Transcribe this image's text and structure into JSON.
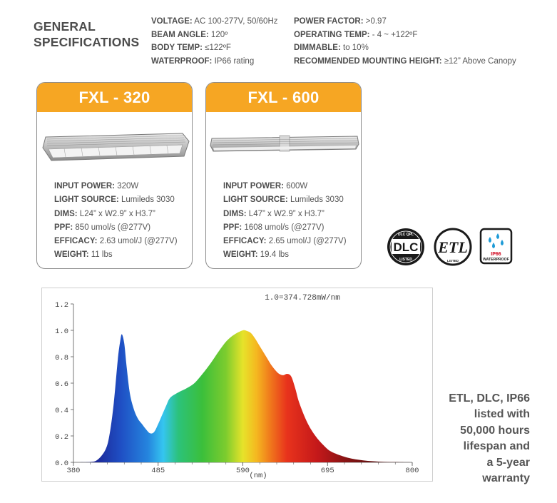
{
  "general": {
    "title_line1": "GENERAL",
    "title_line2": "SPECIFICATIONS",
    "left_specs": [
      {
        "label": "VOLTAGE:",
        "value": "AC 100-277V, 50/60Hz"
      },
      {
        "label": "BEAM ANGLE:",
        "value": "120º"
      },
      {
        "label": "BODY TEMP:",
        "value": "≤122ºF"
      },
      {
        "label": "WATERPROOF:",
        "value": "IP66 rating"
      }
    ],
    "right_specs": [
      {
        "label": "POWER FACTOR:",
        "value": ">0.97"
      },
      {
        "label": "OPERATING TEMP:",
        "value": "- 4 ~ +122ºF"
      },
      {
        "label": "DIMMABLE:",
        "value": "to 10%"
      },
      {
        "label": "RECOMMENDED MOUNTING HEIGHT:",
        "value": "≥12” Above Canopy"
      }
    ]
  },
  "products": [
    {
      "name": "FXL - 320",
      "specs": [
        {
          "label": "INPUT POWER:",
          "value": "320W"
        },
        {
          "label": "LIGHT SOURCE:",
          "value": "Lumileds 3030"
        },
        {
          "label": "DIMS:",
          "value": "L24” x W2.9” x H3.7”"
        },
        {
          "label": "PPF:",
          "value": "850 umol/s (@277V)"
        },
        {
          "label": "EFFICACY:",
          "value": "2.63 umol/J (@277V)"
        },
        {
          "label": "WEIGHT:",
          "value": "11 lbs"
        }
      ]
    },
    {
      "name": "FXL - 600",
      "specs": [
        {
          "label": "INPUT POWER:",
          "value": "600W"
        },
        {
          "label": "LIGHT SOURCE:",
          "value": "Lumileds 3030"
        },
        {
          "label": "DIMS:",
          "value": "L47” x W2.9” x H3.7”"
        },
        {
          "label": "PPF:",
          "value": "1608 umol/s (@277V)"
        },
        {
          "label": "EFFICACY:",
          "value": "2.65 umol/J (@277V)"
        },
        {
          "label": "WEIGHT:",
          "value": "19.4 lbs"
        }
      ]
    }
  ],
  "badges": {
    "dlc_top": "DLC QPL",
    "dlc_mark": "DLC",
    "dlc_bottom": "LISTED",
    "etl_mark": "ETL",
    "etl_bottom": "LISTED",
    "ip_line1": "IP66",
    "ip_line2": "WATERPROOF"
  },
  "chart_data": {
    "type": "area",
    "annotation": "1.0=374.728mW/nm",
    "xlabel": "(nm)",
    "ylabel": "",
    "xlim": [
      380,
      800
    ],
    "ylim": [
      0,
      1.2
    ],
    "x_ticks": [
      "380",
      "485",
      "590",
      "695",
      "800"
    ],
    "y_ticks": [
      "0.0",
      "0.2",
      "0.4",
      "0.6",
      "0.8",
      "1.0",
      "1.2"
    ],
    "grid": false,
    "x": [
      380,
      400,
      410,
      420,
      425,
      430,
      435,
      438,
      440,
      443,
      446,
      450,
      455,
      460,
      465,
      470,
      475,
      480,
      485,
      490,
      495,
      500,
      510,
      520,
      530,
      540,
      550,
      560,
      570,
      580,
      590,
      595,
      600,
      605,
      610,
      615,
      620,
      625,
      630,
      635,
      640,
      645,
      650,
      655,
      660,
      670,
      680,
      690,
      700,
      720,
      740,
      760,
      780,
      800
    ],
    "y": [
      0.0,
      0.002,
      0.02,
      0.1,
      0.22,
      0.45,
      0.78,
      0.92,
      0.97,
      0.9,
      0.72,
      0.52,
      0.4,
      0.33,
      0.29,
      0.25,
      0.22,
      0.23,
      0.29,
      0.36,
      0.43,
      0.49,
      0.53,
      0.56,
      0.6,
      0.67,
      0.75,
      0.84,
      0.92,
      0.97,
      1.0,
      0.995,
      0.98,
      0.94,
      0.89,
      0.84,
      0.79,
      0.74,
      0.7,
      0.67,
      0.66,
      0.67,
      0.65,
      0.56,
      0.45,
      0.3,
      0.2,
      0.13,
      0.08,
      0.035,
      0.014,
      0.005,
      0.002,
      0.0
    ]
  },
  "summary": {
    "lines": [
      "ETL, DLC, IP66",
      "listed with",
      "50,000 hours",
      "lifespan and",
      "a 5-year",
      "warranty"
    ]
  },
  "colors": {
    "accent": "#f6a623",
    "card_border": "#8c8c8c",
    "text": "#4d4d4d"
  }
}
